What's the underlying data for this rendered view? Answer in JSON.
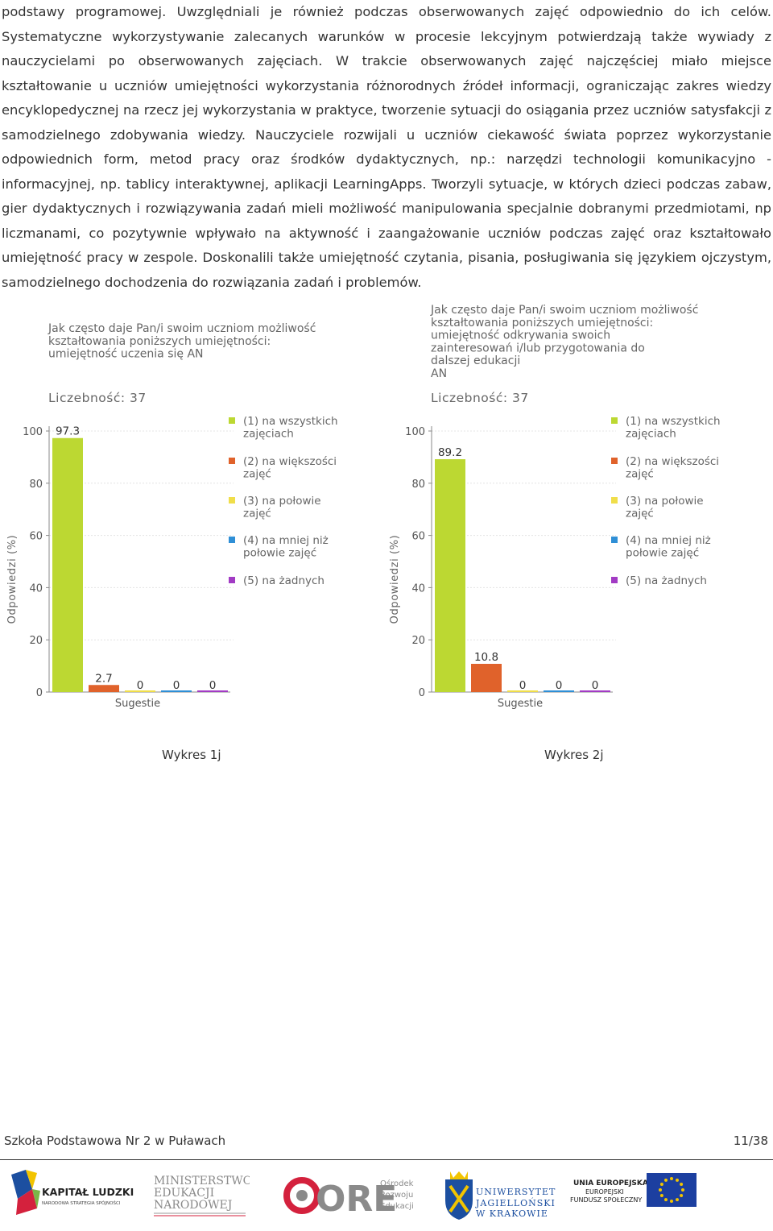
{
  "document": {
    "paragraph": "podstawy programowej. Uwzględniali je również podczas obserwowanych zajęć odpowiednio do ich celów. Systematyczne wykorzystywanie zalecanych warunków w procesie lekcyjnym potwierdzają także wywiady z nauczycielami po obserwowanych zajęciach. W trakcie obserwowanych zajęć najczęściej miało miejsce kształtowanie u uczniów umiejętności wykorzystania różnorodnych źródeł informacji, ograniczając zakres wiedzy encyklopedycznej na rzecz jej wykorzystania w praktyce, tworzenie sytuacji do osiągania przez uczniów satysfakcji z samodzielnego zdobywania wiedzy. Nauczyciele rozwijali u uczniów ciekawość świata poprzez wykorzystanie odpowiednich form, metod pracy oraz środków dydaktycznych, np.: narzędzi technologii komunikacyjno - informacyjnej, np. tablicy interaktywnej, aplikacji LearningApps. Tworzyli sytuacje, w których dzieci podczas zabaw, gier dydaktycznych i rozwiązywania zadań mieli możliwość manipulowania specjalnie dobranymi przedmiotami, np liczmanami, co pozytywnie wpływało na aktywność i zaangażowanie uczniów podczas zajęć oraz kształtowało umiejętność pracy w zespole. Doskonalili także umiejętność czytania, pisania, posługiwania się językiem ojczystym, samodzielnego dochodzenia do rozwiązania zadań i problemów."
  },
  "chart_data": [
    {
      "type": "bar",
      "title_lines": [
        "Jak często daje Pan/i swoim uczniom możliwość",
        "kształtowania poniższych umiejętności:",
        "umiejętność uczenia się AN"
      ],
      "count_label": "Liczebność: 37",
      "ylabel": "Odpowiedzi (%)",
      "xlabel": "Sugestie",
      "ylim": [
        0,
        100
      ],
      "yticks": [
        "0",
        "20",
        "40",
        "60",
        "80",
        "100"
      ],
      "grid": true,
      "legend_position": "right",
      "series": [
        {
          "name": "(1) na wszystkich zajęciach",
          "name_lines": [
            "(1) na wszystkich",
            "zajęciach"
          ],
          "value": 97.3,
          "label": "97.3",
          "color": "#bcd832"
        },
        {
          "name": "(2) na większości zajęć",
          "name_lines": [
            "(2) na większości",
            "zajęć"
          ],
          "value": 2.7,
          "label": "2.7",
          "color": "#e0622b"
        },
        {
          "name": "(3) na połowie zajęć",
          "name_lines": [
            "(3) na połowie",
            "zajęć"
          ],
          "value": 0,
          "label": "0",
          "color": "#f0de4a"
        },
        {
          "name": "(4) na mniej niż połowie zajęć",
          "name_lines": [
            "(4) na mniej niż",
            "połowie zajęć"
          ],
          "value": 0,
          "label": "0",
          "color": "#2f8fd6"
        },
        {
          "name": "(5) na żadnych",
          "name_lines": [
            "(5) na żadnych"
          ],
          "value": 0,
          "label": "0",
          "color": "#a23bc4"
        }
      ],
      "caption": "Wykres 1j"
    },
    {
      "type": "bar",
      "title_lines": [
        "Jak często daje Pan/i swoim uczniom możliwość",
        "kształtowania poniższych umiejętności:",
        "umiejętność odkrywania swoich",
        "zainteresowań i/lub przygotowania do",
        "dalszej edukacji",
        "AN"
      ],
      "count_label": "Liczebność: 37",
      "ylabel": "Odpowiedzi (%)",
      "xlabel": "Sugestie",
      "ylim": [
        0,
        100
      ],
      "yticks": [
        "0",
        "20",
        "40",
        "60",
        "80",
        "100"
      ],
      "grid": true,
      "legend_position": "right",
      "series": [
        {
          "name": "(1) na wszystkich zajęciach",
          "name_lines": [
            "(1) na wszystkich",
            "zajęciach"
          ],
          "value": 89.2,
          "label": "89.2",
          "color": "#bcd832"
        },
        {
          "name": "(2) na większości zajęć",
          "name_lines": [
            "(2) na większości",
            "zajęć"
          ],
          "value": 10.8,
          "label": "10.8",
          "color": "#e0622b"
        },
        {
          "name": "(3) na połowie zajęć",
          "name_lines": [
            "(3) na połowie",
            "zajęć"
          ],
          "value": 0,
          "label": "0",
          "color": "#f0de4a"
        },
        {
          "name": "(4) na mniej niż połowie zajęć",
          "name_lines": [
            "(4) na mniej niż",
            "połowie zajęć"
          ],
          "value": 0,
          "label": "0",
          "color": "#2f8fd6"
        },
        {
          "name": "(5) na żadnych",
          "name_lines": [
            "(5) na żadnych"
          ],
          "value": 0,
          "label": "0",
          "color": "#a23bc4"
        }
      ],
      "caption": "Wykres 2j"
    }
  ],
  "footer": {
    "school": "Szkoła Podstawowa Nr 2 w Puławach",
    "page": "11/38"
  },
  "logos": {
    "kapital_ludzki": [
      "KAPITAŁ LUDZKI",
      "NARODOWA STRATEGIA SPÓJNOŚCI"
    ],
    "ministerstwo": [
      "MINISTERSTWO",
      "EDUKACJI",
      "NARODOWEJ"
    ],
    "ore": [
      "ORE",
      "Ośrodek",
      "Rozwoju",
      "Edukacji"
    ],
    "uj": [
      "UNIWERSYTET",
      "JAGIELLOŃSKI",
      "W KRAKOWIE"
    ],
    "ue": [
      "UNIA EUROPEJSKA",
      "EUROPEJSKI",
      "FUNDUSZ SPOŁECZNY"
    ]
  }
}
